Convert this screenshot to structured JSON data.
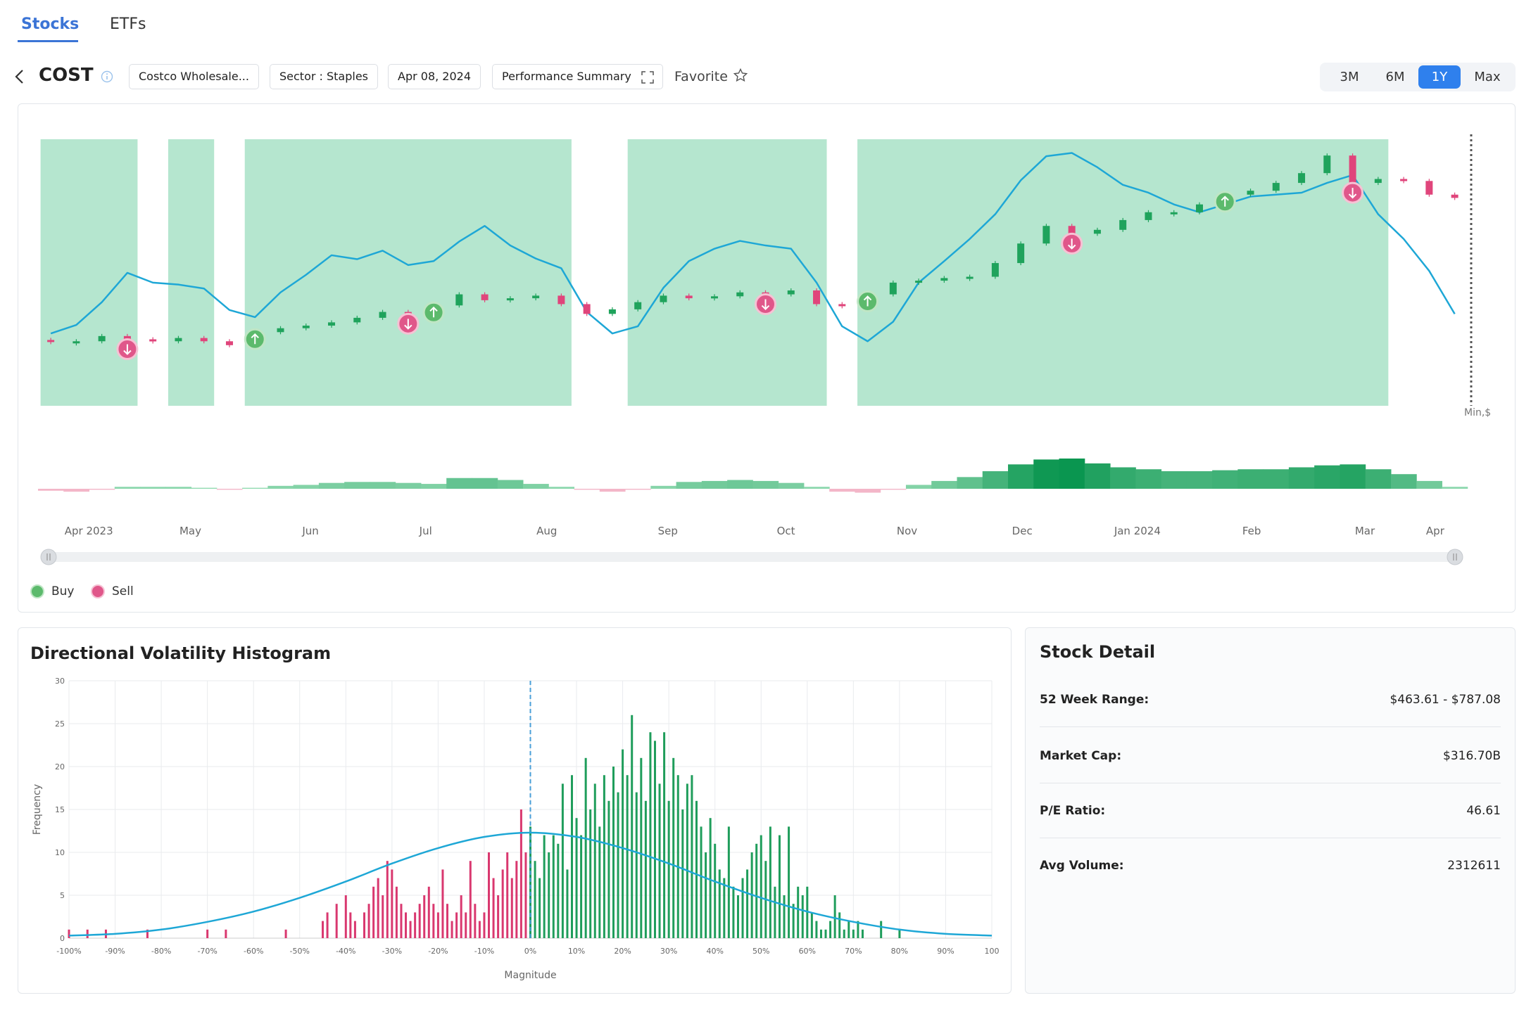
{
  "tabs": [
    "Stocks",
    "ETFs"
  ],
  "active_tab": 0,
  "header": {
    "symbol": "COST",
    "pills": [
      "Costco Wholesale...",
      "Sector : Staples",
      "Apr 08, 2024",
      "Performance Summary"
    ],
    "favorite": "Favorite",
    "ranges": [
      "3M",
      "6M",
      "1Y",
      "Max"
    ],
    "active_range": 2
  },
  "price_chart": {
    "type": "candlestick",
    "ylim": [
      396,
      805
    ],
    "open": [
      497,
      495,
      495,
      503,
      498,
      495,
      500,
      495,
      489,
      509,
      515,
      519,
      524,
      531,
      540,
      537,
      550,
      567,
      558,
      561,
      565,
      552,
      537,
      544,
      555,
      565,
      561,
      564,
      570,
      567,
      573,
      552,
      549,
      567,
      585,
      588,
      592,
      594,
      615,
      645,
      672,
      660,
      666,
      681,
      693,
      693,
      705,
      720,
      726,
      738,
      753,
      780,
      738,
      744,
      741,
      720
    ],
    "close": [
      495,
      495,
      503,
      498,
      495,
      500,
      495,
      489,
      509,
      515,
      519,
      524,
      531,
      540,
      537,
      550,
      567,
      558,
      561,
      565,
      552,
      537,
      544,
      555,
      565,
      561,
      564,
      570,
      567,
      573,
      552,
      549,
      567,
      585,
      588,
      592,
      594,
      615,
      645,
      672,
      660,
      666,
      681,
      693,
      693,
      705,
      720,
      726,
      738,
      753,
      780,
      738,
      744,
      741,
      720,
      715
    ],
    "line": [
      507,
      520,
      555,
      600,
      585,
      582,
      576,
      543,
      532,
      570,
      597,
      627,
      621,
      634,
      612,
      618,
      648,
      672,
      642,
      622,
      607,
      540,
      507,
      518,
      577,
      618,
      637,
      649,
      642,
      637,
      585,
      518,
      495,
      525,
      585,
      618,
      652,
      690,
      742,
      779,
      784,
      762,
      735,
      723,
      705,
      693,
      705,
      717,
      720,
      723,
      738,
      750,
      690,
      652,
      603,
      537
    ],
    "regimes": [
      [
        0,
        3
      ],
      [
        5,
        6
      ],
      [
        8,
        20
      ],
      [
        23,
        30
      ],
      [
        32,
        52
      ]
    ],
    "buy": [
      8,
      15,
      32,
      46
    ],
    "sell": [
      3,
      14,
      28,
      40,
      51
    ],
    "oscillator": [
      -2,
      -3,
      -1,
      2,
      2,
      2,
      1,
      -1,
      1,
      3,
      4,
      6,
      7,
      7,
      6,
      5,
      11,
      11,
      9,
      5,
      2,
      -1,
      -3,
      -1,
      3,
      7,
      8,
      9,
      8,
      6,
      2,
      -3,
      -4,
      -1,
      4,
      8,
      12,
      18,
      25,
      30,
      31,
      26,
      22,
      20,
      18,
      18,
      19,
      20,
      20,
      22,
      24,
      25,
      20,
      15,
      8,
      2
    ],
    "unit_label": "Min,$",
    "months": [
      "Apr 2023",
      "May",
      "Jun",
      "Jul",
      "Aug",
      "Sep",
      "Oct",
      "Nov",
      "Dec",
      "Jan 2024",
      "Feb",
      "Mar",
      "Apr"
    ],
    "legend": [
      "Buy",
      "Sell"
    ],
    "colors": {
      "up": "#1fa35c",
      "down": "#e0457b",
      "line": "#1ea7d6",
      "band": "#b5e6cf",
      "buy": "#5cba6c",
      "sell": "#e0578a"
    }
  },
  "histogram": {
    "type": "bar",
    "title": "Directional Volatility Histogram",
    "xlabel": "Magnitude",
    "ylabel": "Frequency",
    "xlim": [
      -100,
      100
    ],
    "ylim": [
      0,
      30
    ],
    "xticks": [
      {
        "value": -100,
        "label": "-100%"
      },
      {
        "value": -90,
        "label": "-90%"
      },
      {
        "value": -80,
        "label": "-80%"
      },
      {
        "value": -70,
        "label": "-70%"
      },
      {
        "value": -60,
        "label": "-60%"
      },
      {
        "value": -50,
        "label": "-50%"
      },
      {
        "value": -40,
        "label": "-40%"
      },
      {
        "value": -30,
        "label": "-30%"
      },
      {
        "value": -20,
        "label": "-20%"
      },
      {
        "value": -10,
        "label": "-10%"
      },
      {
        "value": 0,
        "label": "0%"
      },
      {
        "value": 10,
        "label": "10%"
      },
      {
        "value": 20,
        "label": "20%"
      },
      {
        "value": 30,
        "label": "30%"
      },
      {
        "value": 40,
        "label": "40%"
      },
      {
        "value": 50,
        "label": "50%"
      },
      {
        "value": 60,
        "label": "60%"
      },
      {
        "value": 70,
        "label": "70%"
      },
      {
        "value": 80,
        "label": "80%"
      },
      {
        "value": 90,
        "label": "90%"
      },
      {
        "value": 100,
        "label": "100"
      }
    ],
    "yticks": [
      0,
      5,
      10,
      15,
      20,
      25,
      30
    ],
    "grid": true,
    "x": [
      -100,
      -96,
      -92,
      -83,
      -70,
      -66,
      -53,
      -45,
      -44,
      -42,
      -40,
      -39,
      -38,
      -36,
      -35,
      -34,
      -33,
      -32,
      -31,
      -30,
      -29,
      -28,
      -27,
      -26,
      -25,
      -24,
      -23,
      -22,
      -21,
      -20,
      -19,
      -18,
      -17,
      -16,
      -15,
      -14,
      -13,
      -12,
      -11,
      -10,
      -9,
      -8,
      -7,
      -6,
      -5,
      -4,
      -3,
      -2,
      -1,
      0,
      1,
      2,
      3,
      4,
      5,
      6,
      7,
      8,
      9,
      10,
      11,
      12,
      13,
      14,
      15,
      16,
      17,
      18,
      19,
      20,
      21,
      22,
      23,
      24,
      25,
      26,
      27,
      28,
      29,
      30,
      31,
      32,
      33,
      34,
      35,
      36,
      37,
      38,
      39,
      40,
      41,
      42,
      43,
      44,
      45,
      46,
      47,
      48,
      49,
      50,
      51,
      52,
      53,
      54,
      55,
      56,
      57,
      58,
      59,
      60,
      61,
      62,
      63,
      64,
      65,
      66,
      67,
      68,
      69,
      70,
      71,
      72,
      76,
      80
    ],
    "values": [
      1,
      1,
      1,
      1,
      1,
      1,
      1,
      2,
      3,
      4,
      5,
      3,
      2,
      3,
      4,
      6,
      7,
      5,
      9,
      8,
      6,
      4,
      3,
      2,
      3,
      4,
      5,
      6,
      4,
      3,
      8,
      4,
      2,
      3,
      5,
      3,
      9,
      4,
      2,
      3,
      10,
      7,
      5,
      8,
      10,
      7,
      9,
      15,
      10,
      13,
      9,
      7,
      12,
      10,
      12,
      11,
      18,
      8,
      19,
      14,
      12,
      21,
      15,
      18,
      13,
      19,
      16,
      20,
      17,
      22,
      19,
      26,
      17,
      21,
      16,
      24,
      23,
      18,
      24,
      16,
      21,
      19,
      15,
      18,
      19,
      16,
      13,
      10,
      14,
      11,
      8,
      7,
      13,
      6,
      5,
      7,
      8,
      10,
      11,
      12,
      9,
      13,
      6,
      12,
      5,
      13,
      4,
      6,
      5,
      6,
      3,
      2,
      1,
      1,
      2,
      5,
      3,
      1,
      2,
      1,
      2,
      1,
      2,
      1
    ],
    "curve": {
      "x": [
        -100,
        -90,
        -80,
        -70,
        -60,
        -50,
        -40,
        -30,
        -20,
        -10,
        0,
        10,
        20,
        30,
        40,
        50,
        60,
        70,
        80,
        90,
        100
      ],
      "y": [
        0.3,
        0.5,
        1,
        1.9,
        3.1,
        4.7,
        6.6,
        8.7,
        10.5,
        11.8,
        12.3,
        11.8,
        10.5,
        8.7,
        6.6,
        4.7,
        3.1,
        1.9,
        1,
        0.5,
        0.3
      ]
    },
    "colors": {
      "negative": "#d9386f",
      "positive": "#1f9d5b",
      "curve": "#1ea7d6",
      "zero": "#4a9fd8"
    }
  },
  "stock_detail": {
    "title": "Stock Detail",
    "rows": [
      [
        "52 Week Range:",
        "$463.61 - $787.08"
      ],
      [
        "Market Cap:",
        "$316.70B"
      ],
      [
        "P/E Ratio:",
        "46.61"
      ],
      [
        "Avg Volume:",
        "2312611"
      ]
    ]
  }
}
